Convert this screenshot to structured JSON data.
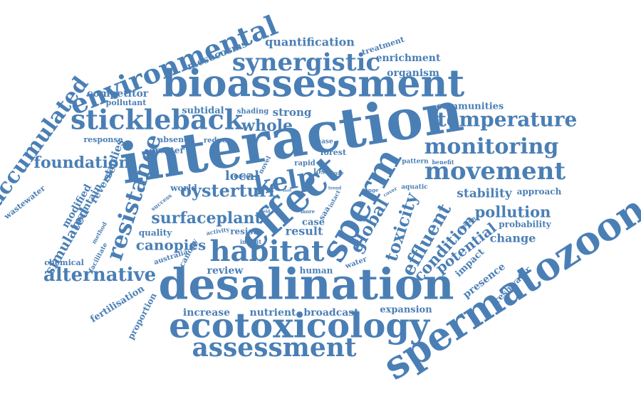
{
  "colors": {
    "word": "#4a7fb5",
    "background": "#ffffff"
  },
  "words": [
    {
      "text": "interaction"
    },
    {
      "text": "desalination"
    },
    {
      "text": "bioassessment"
    },
    {
      "text": "ecotoxicology"
    },
    {
      "text": "spermatozoon"
    },
    {
      "text": "environmental"
    },
    {
      "text": "effect"
    },
    {
      "text": "sperm"
    },
    {
      "text": "stickleback"
    },
    {
      "text": "assessment"
    },
    {
      "text": "synergistic"
    },
    {
      "text": "habitat"
    },
    {
      "text": "movement"
    },
    {
      "text": "temperature"
    },
    {
      "text": "monitoring"
    },
    {
      "text": "accumulated"
    },
    {
      "text": "resistance"
    },
    {
      "text": "kelp"
    },
    {
      "text": "alternative"
    },
    {
      "text": "oysterturf"
    },
    {
      "text": "surfaceplant"
    },
    {
      "text": "foundation"
    },
    {
      "text": "toxicity"
    },
    {
      "text": "global"
    },
    {
      "text": "effluent"
    },
    {
      "text": "condition"
    },
    {
      "text": "pollution"
    },
    {
      "text": "canopies"
    },
    {
      "text": "whole"
    },
    {
      "text": "potential"
    },
    {
      "text": "stability"
    },
    {
      "text": "simulated"
    },
    {
      "text": "local"
    },
    {
      "text": "quantification"
    },
    {
      "text": "organism"
    },
    {
      "text": "enrichment"
    },
    {
      "text": "communities"
    },
    {
      "text": "competitor"
    },
    {
      "text": "mesocosms"
    },
    {
      "text": "strong"
    },
    {
      "text": "subtidal"
    },
    {
      "text": "change"
    },
    {
      "text": "presence"
    },
    {
      "text": "impact"
    },
    {
      "text": "probability"
    },
    {
      "text": "approach"
    },
    {
      "text": "result"
    },
    {
      "text": "review"
    },
    {
      "text": "human"
    },
    {
      "text": "increase"
    },
    {
      "text": "nutrient"
    },
    {
      "text": "broadcast"
    },
    {
      "text": "expansion"
    },
    {
      "text": "fertilisation"
    },
    {
      "text": "proportion"
    },
    {
      "text": "chemical"
    },
    {
      "text": "australia"
    },
    {
      "text": "canopy"
    },
    {
      "text": "freshwater"
    },
    {
      "text": "modified"
    },
    {
      "text": "maintain"
    },
    {
      "text": "reverse"
    },
    {
      "text": "studies"
    },
    {
      "text": "wastewater"
    },
    {
      "text": "response"
    },
    {
      "text": "pollutant"
    },
    {
      "text": "treatment"
    },
    {
      "text": "shading"
    },
    {
      "text": "absence"
    },
    {
      "text": "greater"
    },
    {
      "text": "reduce"
    },
    {
      "text": "forest"
    },
    {
      "text": "phase"
    },
    {
      "text": "world"
    },
    {
      "text": "model"
    },
    {
      "text": "novel"
    },
    {
      "text": "rapid"
    },
    {
      "text": "loss"
    },
    {
      "text": "algae"
    },
    {
      "text": "pattern"
    },
    {
      "text": "benefit"
    },
    {
      "text": "aquatic"
    },
    {
      "text": "range"
    },
    {
      "text": "cover"
    },
    {
      "text": "trend"
    },
    {
      "text": "intact"
    },
    {
      "text": "saa"
    },
    {
      "text": "case"
    },
    {
      "text": "more"
    },
    {
      "text": "field"
    },
    {
      "text": "shift"
    },
    {
      "text": "resist"
    },
    {
      "text": "inhibit"
    },
    {
      "text": "activity"
    },
    {
      "text": "quality"
    },
    {
      "text": "method"
    },
    {
      "text": "facilitate"
    },
    {
      "text": "success"
    },
    {
      "text": "water"
    },
    {
      "text": "confirm"
    }
  ]
}
